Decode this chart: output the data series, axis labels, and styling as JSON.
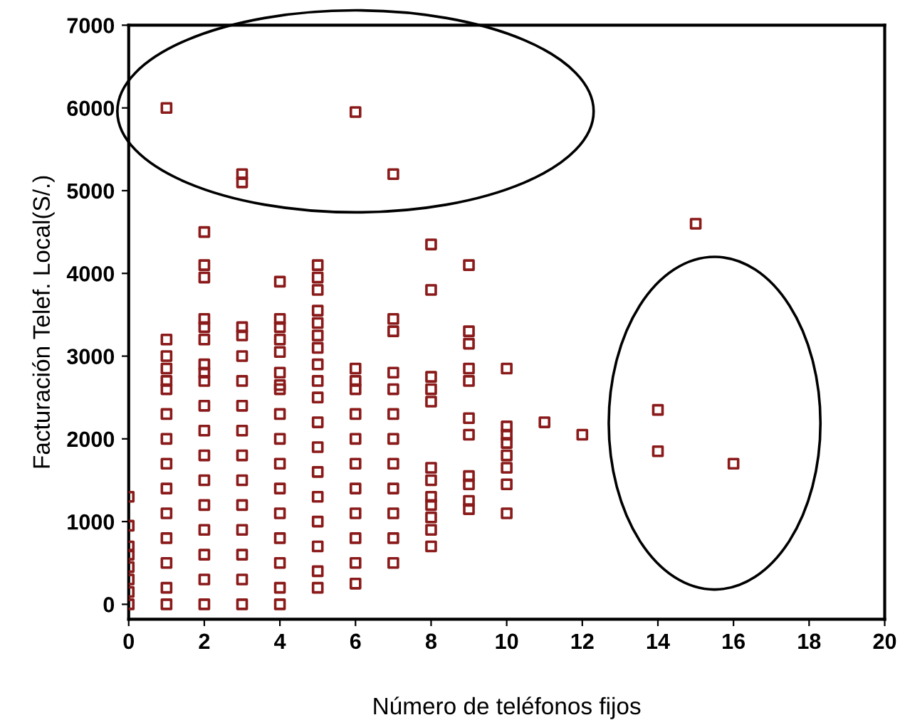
{
  "chart_data": {
    "type": "scatter",
    "xlabel": "Número de teléfonos fijos",
    "ylabel": "Facturación Telef. Local(S/.)",
    "xlim": [
      0,
      20
    ],
    "ylim": [
      -180,
      7000
    ],
    "xticks": [
      0,
      2,
      4,
      6,
      8,
      10,
      12,
      14,
      16,
      18,
      20
    ],
    "yticks": [
      0,
      1000,
      2000,
      3000,
      4000,
      5000,
      6000,
      7000
    ],
    "grid": false,
    "marker": "square",
    "series": [
      {
        "color": "#8b1a1a",
        "x": [
          0,
          0,
          0,
          0,
          0,
          0,
          0,
          0,
          1,
          1,
          1,
          1,
          1,
          1,
          1,
          1,
          1,
          1,
          1,
          1,
          1,
          1,
          1,
          2,
          2,
          2,
          2,
          2,
          2,
          2,
          2,
          2,
          2,
          2,
          2,
          2,
          2,
          2,
          2,
          2,
          2,
          3,
          3,
          3,
          3,
          3,
          3,
          3,
          3,
          3,
          3,
          3,
          3,
          3,
          3,
          3,
          4,
          4,
          4,
          4,
          4,
          4,
          4,
          4,
          4,
          4,
          4,
          4,
          4,
          4,
          4,
          4,
          4,
          5,
          5,
          5,
          5,
          5,
          5,
          5,
          5,
          5,
          5,
          5,
          5,
          5,
          5,
          5,
          5,
          5,
          5,
          6,
          6,
          6,
          6,
          6,
          6,
          6,
          6,
          6,
          6,
          6,
          6,
          7,
          7,
          7,
          7,
          7,
          7,
          7,
          7,
          7,
          7,
          7,
          7,
          8,
          8,
          8,
          8,
          8,
          8,
          8,
          8,
          8,
          8,
          8,
          8,
          9,
          9,
          9,
          9,
          9,
          9,
          9,
          9,
          9,
          9,
          9,
          10,
          10,
          10,
          10,
          10,
          10,
          10,
          10,
          11,
          12,
          14,
          14,
          15,
          16
        ],
        "values": [
          0,
          150,
          300,
          450,
          600,
          700,
          950,
          1300,
          6000,
          3200,
          3000,
          2850,
          2700,
          2600,
          2300,
          2000,
          1700,
          1400,
          1100,
          800,
          500,
          200,
          0,
          4500,
          4100,
          3950,
          3450,
          3350,
          3200,
          2900,
          2800,
          2700,
          2400,
          2100,
          1800,
          1500,
          1200,
          900,
          600,
          300,
          0,
          5200,
          5100,
          3350,
          3250,
          3000,
          2700,
          2400,
          2100,
          1800,
          1500,
          1200,
          900,
          600,
          300,
          0,
          3900,
          3450,
          3350,
          3200,
          3050,
          2800,
          2650,
          2600,
          2300,
          2000,
          1700,
          1400,
          1100,
          800,
          500,
          200,
          0,
          4100,
          3950,
          3800,
          3550,
          3400,
          3250,
          3100,
          2900,
          2700,
          2500,
          2200,
          1900,
          1600,
          1300,
          1000,
          700,
          400,
          200,
          5950,
          2850,
          2700,
          2600,
          2300,
          2000,
          1700,
          1400,
          1100,
          800,
          500,
          250,
          5200,
          3450,
          3300,
          2800,
          2600,
          2300,
          2000,
          1700,
          1400,
          1100,
          800,
          500,
          4350,
          3800,
          2750,
          2600,
          2450,
          1650,
          1500,
          1300,
          1200,
          1050,
          900,
          700,
          4100,
          3300,
          3150,
          2850,
          2700,
          2250,
          2050,
          1550,
          1450,
          1250,
          1150,
          2850,
          2150,
          2050,
          1950,
          1800,
          1650,
          1450,
          1100,
          2200,
          2050,
          2350,
          1850,
          4600,
          1700
        ]
      }
    ]
  }
}
